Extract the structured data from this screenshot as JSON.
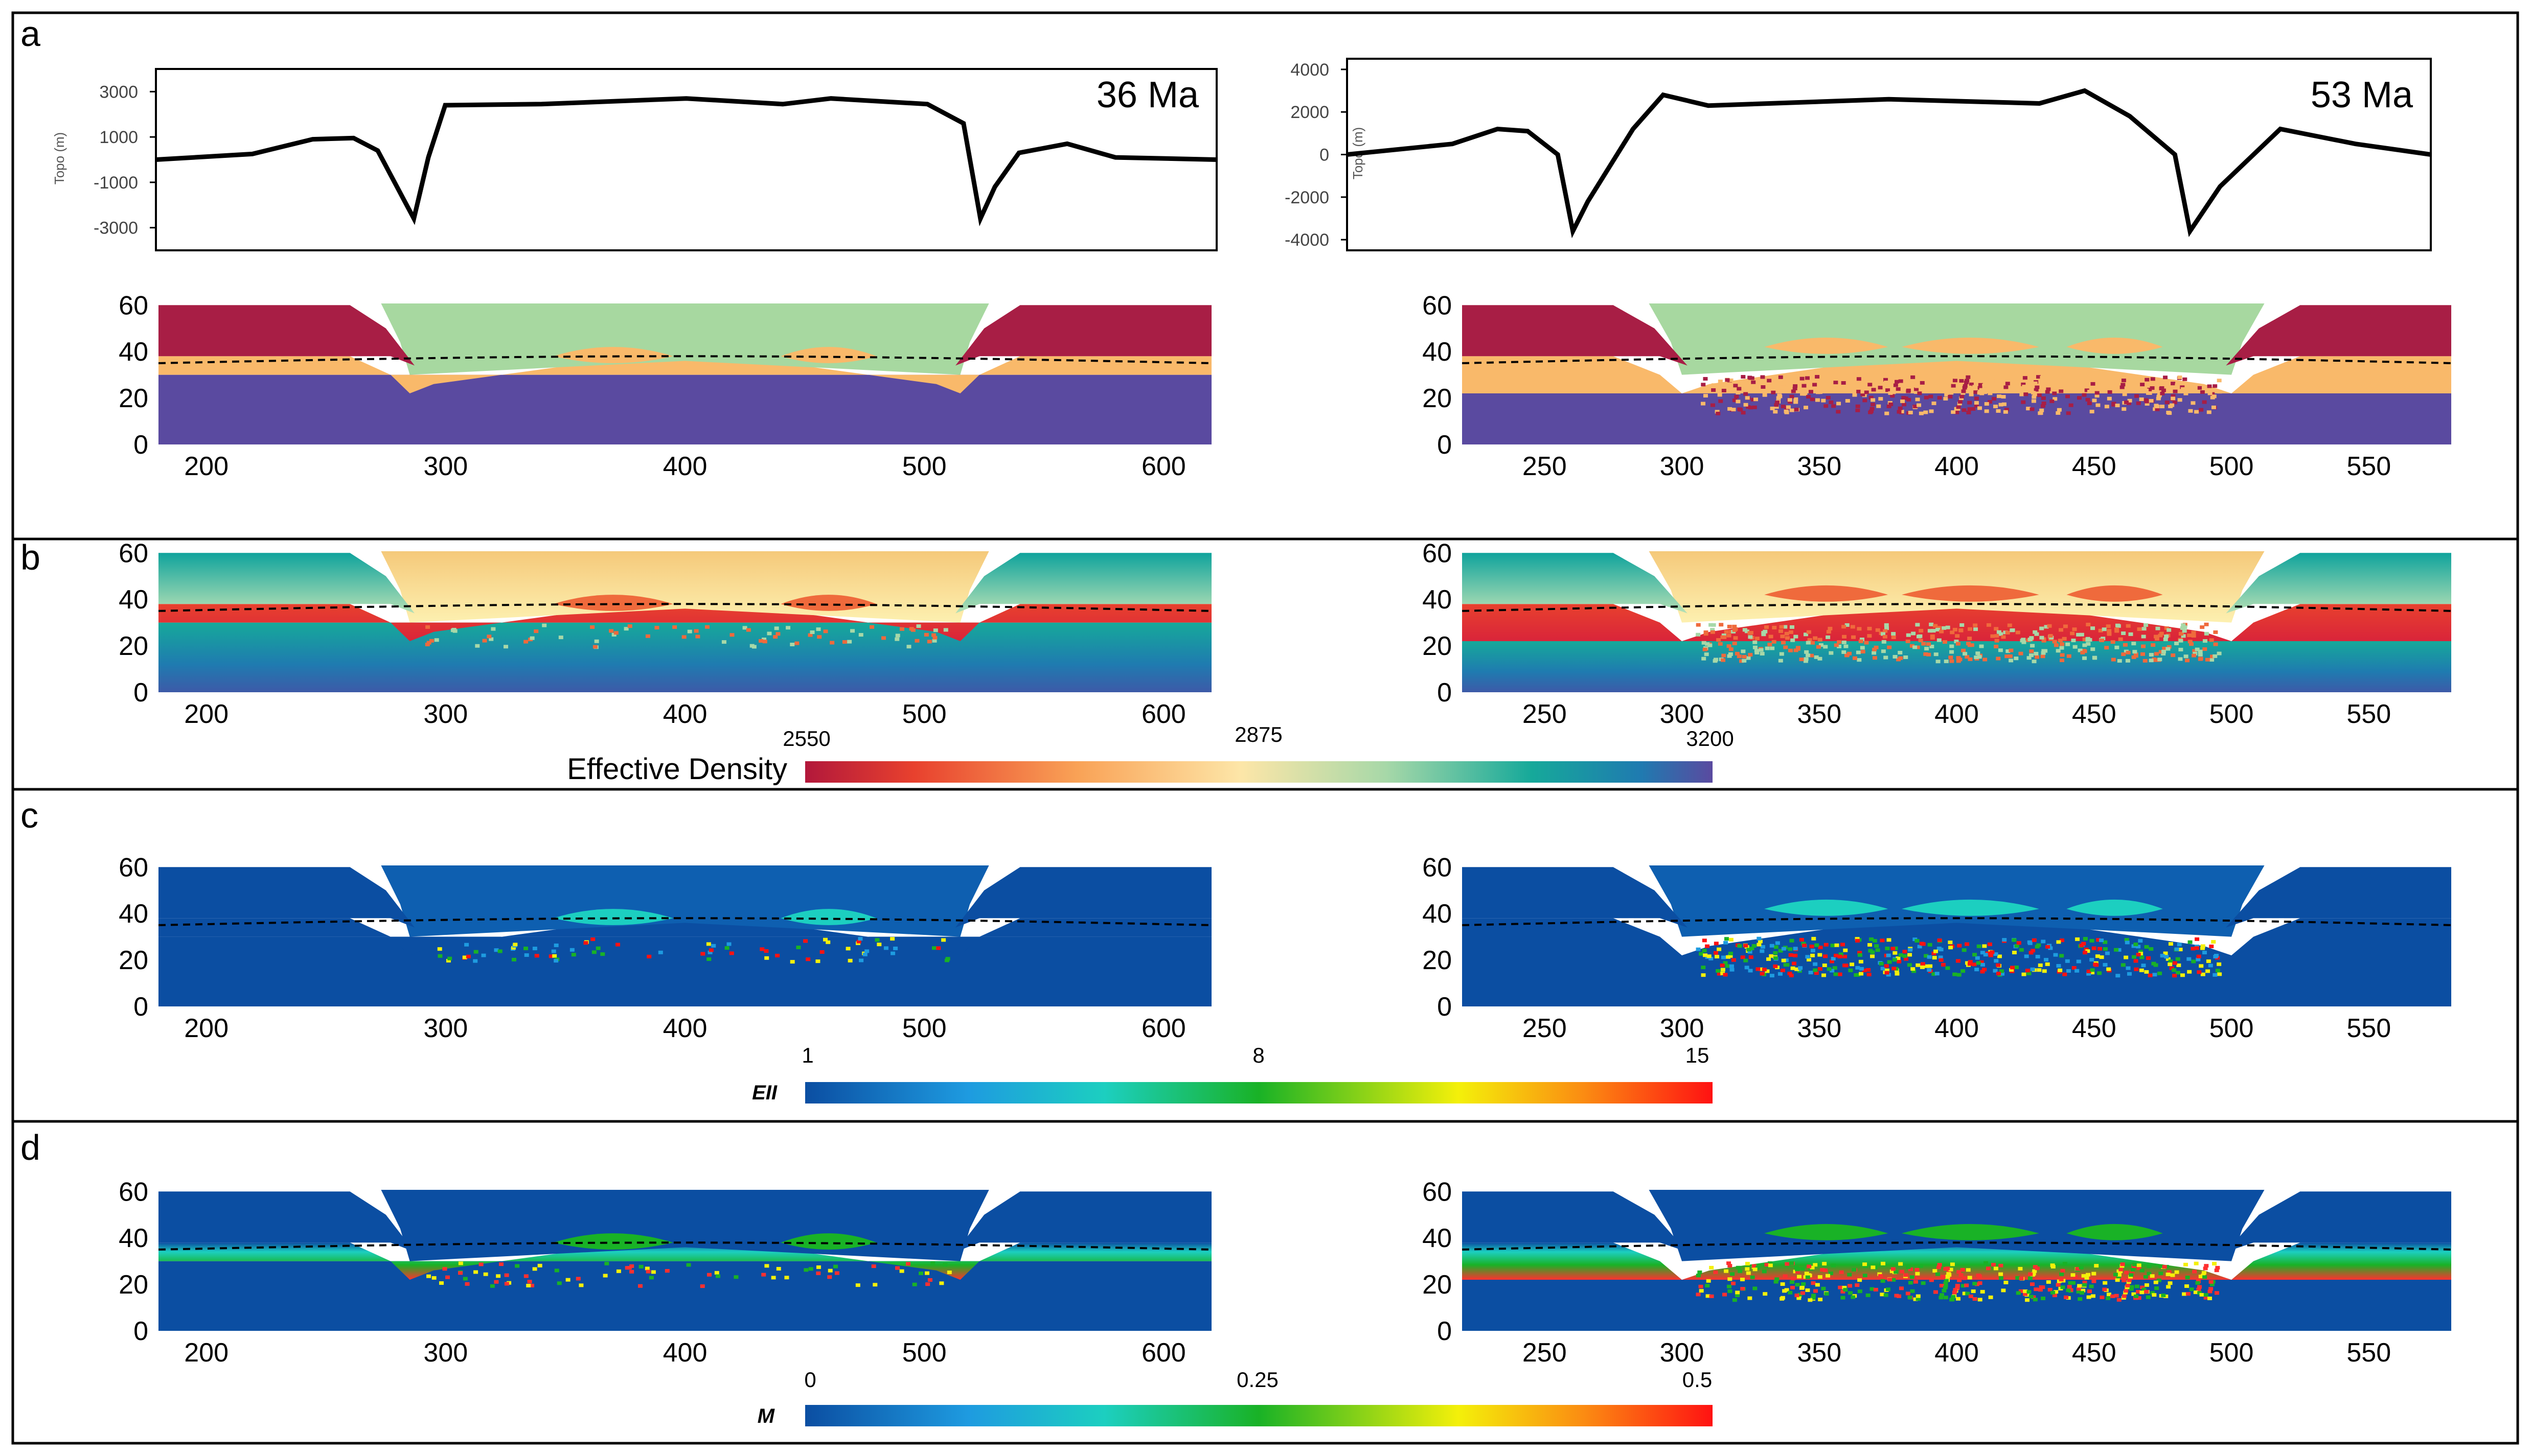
{
  "panels": {
    "a": {
      "letter": "a"
    },
    "b": {
      "letter": "b"
    },
    "c": {
      "letter": "c"
    },
    "d": {
      "letter": "d"
    }
  },
  "colorbars": {
    "density": {
      "label": "Effective Density",
      "ticks": [
        "2550",
        "2875",
        "3200"
      ],
      "colors": [
        "#b2183b",
        "#e8412e",
        "#f9a256",
        "#fde6a8",
        "#a7d8a8",
        "#16a99a",
        "#1f7bb0",
        "#5a4aa0"
      ]
    },
    "e2": {
      "label": "EII",
      "ticks": [
        "1",
        "8",
        "15"
      ],
      "colors": [
        "#0b4ea2",
        "#1e9be0",
        "#1ccfc0",
        "#19b226",
        "#f4f00a",
        "#fb8a12",
        "#ff1212"
      ]
    },
    "melt": {
      "label": "M",
      "ticks": [
        "0",
        "0.25",
        "0.5"
      ],
      "colors": [
        "#0b4ea2",
        "#1e9be0",
        "#1ccfc0",
        "#19b226",
        "#f4f00a",
        "#fb8a12",
        "#ff1212"
      ]
    }
  },
  "chart_data": [
    {
      "type": "line",
      "id": "topo36",
      "series_label": "36 Ma",
      "ylabel": "Topo (m)",
      "yticks": [
        3000,
        1000,
        -1000,
        -3000
      ],
      "ylim": [
        -4000,
        4000
      ],
      "xlim": [
        180,
        620
      ],
      "grid": false,
      "x": [
        180,
        220,
        245,
        262,
        272,
        280,
        287,
        293,
        300,
        340,
        400,
        440,
        460,
        500,
        515,
        522,
        528,
        538,
        558,
        578,
        620
      ],
      "y": [
        0,
        250,
        900,
        950,
        400,
        -1200,
        -2600,
        100,
        2400,
        2450,
        2700,
        2450,
        2700,
        2450,
        1600,
        -2600,
        -1200,
        300,
        700,
        100,
        0
      ]
    },
    {
      "type": "line",
      "id": "topo53",
      "series_label": "53 Ma",
      "ylabel": "Topo (m)",
      "yticks": [
        4000,
        2000,
        0,
        -2000,
        -4000
      ],
      "ylim": [
        -4500,
        4500
      ],
      "xlim": [
        220,
        580
      ],
      "grid": false,
      "x": [
        220,
        255,
        270,
        280,
        290,
        295,
        300,
        315,
        325,
        340,
        400,
        450,
        465,
        480,
        495,
        500,
        510,
        530,
        555,
        580
      ],
      "y": [
        0,
        500,
        1200,
        1100,
        0,
        -3600,
        -2200,
        1200,
        2800,
        2300,
        2600,
        2400,
        3000,
        1800,
        0,
        -3600,
        -1500,
        1200,
        500,
        0
      ]
    },
    {
      "type": "heatmap",
      "id": "composition",
      "description": "Lithospheric cross-sections (y-axis km, x-axis km)",
      "xticks_36": [
        200,
        300,
        400,
        500,
        600
      ],
      "xticks_53": [
        250,
        300,
        350,
        400,
        450,
        500,
        550
      ],
      "yticks": [
        0,
        20,
        40,
        60
      ]
    }
  ]
}
